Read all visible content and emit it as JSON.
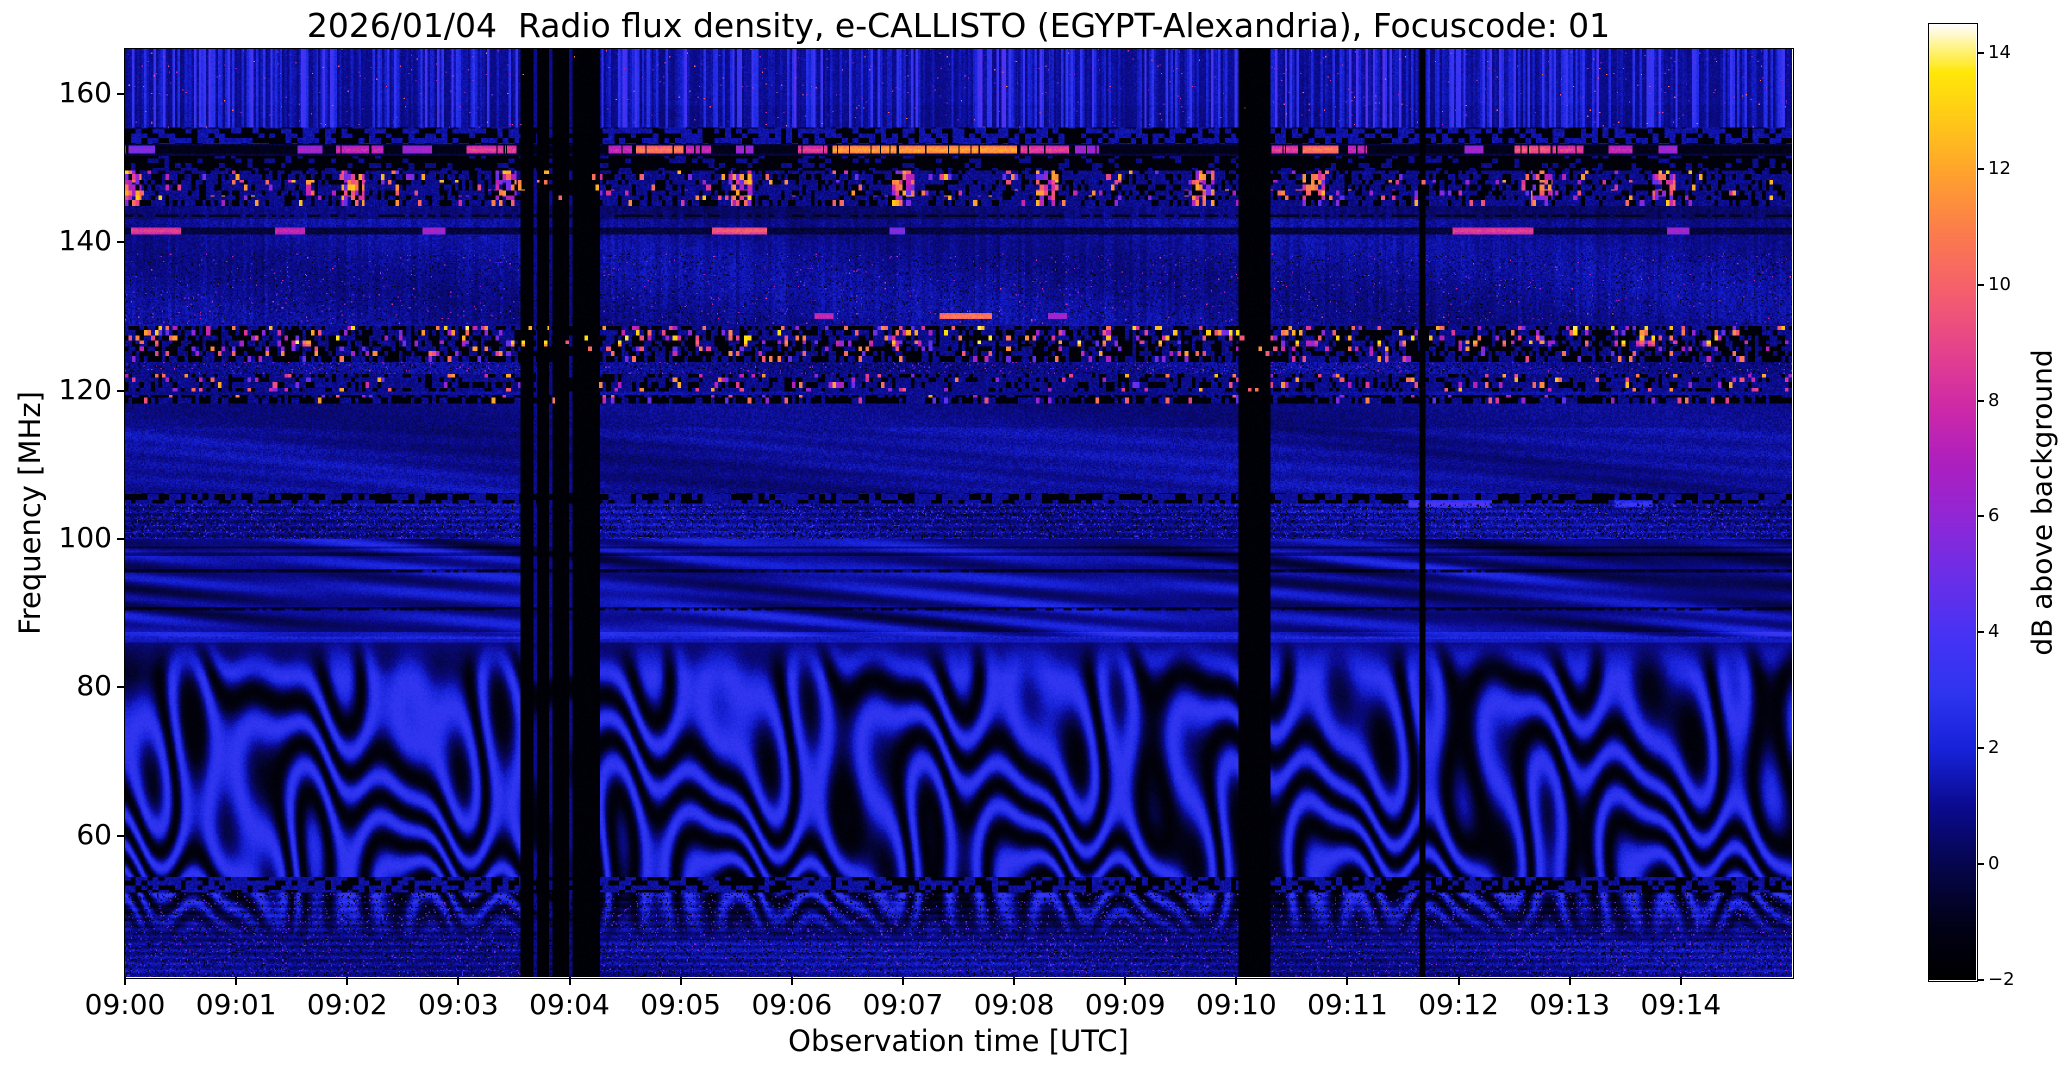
{
  "figure": {
    "title": "2026/01/04  Radio flux density, e-CALLISTO (EGYPT-Alexandria), Focuscode: 01",
    "xlabel": "Observation time [UTC]",
    "ylabel": "Frequency [MHz]",
    "colorbar_label": "dB above background",
    "date": "2026/01/04",
    "instrument": "e-CALLISTO",
    "station": "EGYPT-Alexandria",
    "focuscode": "01"
  },
  "colors": {
    "page_bg": "#ffffff",
    "axis_text": "#000000"
  },
  "chart_data": {
    "type": "heatmap",
    "title": "2026/01/04  Radio flux density, e-CALLISTO (EGYPT-Alexandria), Focuscode: 01",
    "xlabel": "Observation time [UTC]",
    "ylabel": "Frequency [MHz]",
    "x_ticks": [
      "09:00",
      "09:01",
      "09:02",
      "09:03",
      "09:04",
      "09:05",
      "09:06",
      "09:07",
      "09:08",
      "09:09",
      "09:10",
      "09:11",
      "09:12",
      "09:13",
      "09:14"
    ],
    "x_range_minutes": [
      0,
      15
    ],
    "x_start_utc": "09:00",
    "y_ticks": [
      160,
      140,
      120,
      100,
      80,
      60
    ],
    "y_range_mhz": [
      41,
      166
    ],
    "colorbar": {
      "label": "dB above background",
      "ticks": [
        14,
        12,
        10,
        8,
        6,
        4,
        2,
        0,
        -2
      ],
      "tick_labels": [
        "14",
        "12",
        "10",
        "8",
        "6",
        "4",
        "2",
        "0",
        "−2"
      ],
      "range": [
        -2,
        14.5
      ],
      "colormap": "gnuplot2-like (black-blue-violet-magenta-orange-yellow-white)",
      "colormap_stops": [
        [
          0.0,
          "#000000"
        ],
        [
          0.06,
          "#02021a"
        ],
        [
          0.12,
          "#06064e"
        ],
        [
          0.18,
          "#0b0b8f"
        ],
        [
          0.24,
          "#1722d8"
        ],
        [
          0.3,
          "#2f35f0"
        ],
        [
          0.36,
          "#4733f5"
        ],
        [
          0.42,
          "#6a2fe8"
        ],
        [
          0.48,
          "#8f28d8"
        ],
        [
          0.54,
          "#ad1fc0"
        ],
        [
          0.6,
          "#cf2aa8"
        ],
        [
          0.66,
          "#e6438c"
        ],
        [
          0.72,
          "#f55f6e"
        ],
        [
          0.78,
          "#fc7b4e"
        ],
        [
          0.84,
          "#ffa030"
        ],
        [
          0.9,
          "#ffc918"
        ],
        [
          0.95,
          "#ffe80a"
        ],
        [
          1.0,
          "#ffffff"
        ]
      ]
    },
    "features": {
      "noise_floor_db": 0.9,
      "fringes": {
        "f_min": 46.0,
        "f_max": 86.5,
        "amplitude_db": 2.3,
        "stripe_spacing_mhz": [
          1.7,
          3.4
        ],
        "description": "wavy quasi-horizontal interference fringes between ~50 and 86 MHz"
      },
      "vertical_dropouts_min": [
        [
          3.56,
          3.67
        ],
        [
          3.71,
          3.81
        ],
        [
          3.845,
          4.0
        ],
        [
          4.03,
          4.27
        ],
        [
          10.02,
          10.31
        ],
        [
          11.645,
          11.695
        ]
      ],
      "partial_dropouts_min": [
        [
          3.67,
          3.71
        ],
        [
          3.81,
          3.845
        ],
        [
          4.0,
          4.03
        ]
      ],
      "dark_rows_mhz": [
        143.6,
        95.7,
        90.5
      ],
      "bands": [
        {
          "type": "streaks",
          "f0": 158.5,
          "f1": 166.2,
          "base": 0.5
        },
        {
          "type": "streaks",
          "f0": 155.5,
          "f1": 158.5,
          "base": 0.35
        },
        {
          "type": "darkdash",
          "f0": 153.2,
          "f1": 155.5,
          "p_black": 0.5,
          "base": 0.9
        },
        {
          "type": "line152",
          "f0": 151.6,
          "f1": 153.2,
          "center": 152.4,
          "segments": [
            [
              0.0,
              0.27,
              6
            ],
            [
              1.55,
              1.78,
              7
            ],
            [
              1.9,
              2.32,
              8
            ],
            [
              2.5,
              2.76,
              7
            ],
            [
              3.08,
              3.52,
              9
            ],
            [
              4.35,
              4.56,
              8
            ],
            [
              4.6,
              5.02,
              11
            ],
            [
              5.05,
              5.27,
              8
            ],
            [
              5.5,
              5.66,
              7
            ],
            [
              6.05,
              6.32,
              9
            ],
            [
              6.36,
              8.02,
              12
            ],
            [
              8.06,
              8.5,
              9
            ],
            [
              8.55,
              8.76,
              7
            ],
            [
              10.32,
              10.56,
              9
            ],
            [
              10.6,
              10.92,
              11
            ],
            [
              11.0,
              11.17,
              8
            ],
            [
              12.05,
              12.22,
              7
            ],
            [
              12.5,
              12.82,
              10
            ],
            [
              12.85,
              13.12,
              9
            ],
            [
              13.35,
              13.56,
              8
            ],
            [
              13.8,
              13.97,
              7
            ]
          ]
        },
        {
          "type": "darkdash",
          "f0": 149.6,
          "f1": 151.6,
          "p_black": 0.78,
          "base": 0.5
        },
        {
          "type": "rfiband",
          "f0": 144.8,
          "f1": 149.6,
          "p_black": 0.28,
          "p_bright": 0.05,
          "bright_hi": 13,
          "clusters": [
            0.05,
            2.05,
            3.42,
            5.55,
            7.0,
            8.3,
            9.7,
            10.7,
            12.75,
            13.85
          ],
          "rows": [
            146.6,
            148.6
          ]
        },
        {
          "type": "dim",
          "f0": 143.1,
          "f1": 144.8,
          "amount": 0.5
        },
        {
          "type": "segline",
          "f0": 141.0,
          "f1": 142.0,
          "dark_off": true,
          "segments": [
            [
              0.05,
              0.5,
              9
            ],
            [
              1.35,
              1.62,
              8
            ],
            [
              2.68,
              2.88,
              7
            ],
            [
              5.28,
              5.78,
              10
            ],
            [
              6.88,
              7.02,
              6
            ],
            [
              11.95,
              12.68,
              9
            ],
            [
              13.88,
              14.08,
              7
            ]
          ]
        },
        {
          "type": "speckle",
          "f0": 129.0,
          "f1": 138.5,
          "p_bright": 0.012,
          "bright_hi": 9,
          "p_black": 0.04
        },
        {
          "type": "segline",
          "f0": 129.6,
          "f1": 130.4,
          "dark_off": false,
          "segments": [
            [
              6.2,
              6.38,
              8
            ],
            [
              7.33,
              7.8,
              11
            ],
            [
              8.3,
              8.48,
              7
            ]
          ]
        },
        {
          "type": "rfiband",
          "f0": 126.2,
          "f1": 128.6,
          "p_black": 0.42,
          "p_bright": 0.16,
          "bright_hi": 14
        },
        {
          "type": "rfiband",
          "f0": 123.8,
          "f1": 126.2,
          "p_black": 0.5,
          "p_bright": 0.1,
          "bright_hi": 12
        },
        {
          "type": "speckle",
          "f0": 122.3,
          "f1": 123.8,
          "p_bright": 0.03,
          "bright_hi": 8,
          "p_black": 0.1
        },
        {
          "type": "rfiband",
          "f0": 119.8,
          "f1": 122.3,
          "p_black": 0.25,
          "p_bright": 0.09,
          "bright_hi": 13
        },
        {
          "type": "rfiband",
          "f0": 118.2,
          "f1": 119.4,
          "p_black": 0.6,
          "p_bright": 0.06,
          "bright_hi": 12
        },
        {
          "type": "dim",
          "f0": 115.0,
          "f1": 118.2,
          "amount": 0.25
        },
        {
          "type": "smudge2",
          "f0": 106.2,
          "f1": 115.0,
          "amp": 0.4
        },
        {
          "type": "darkdash",
          "f0": 104.8,
          "f1": 106.2,
          "p_black": 0.5,
          "base": 0.7
        },
        {
          "type": "segline",
          "f0": 104.2,
          "f1": 105.2,
          "dark_off": false,
          "segments": [
            [
              11.55,
              12.3,
              4.2
            ],
            [
              13.4,
              13.75,
              3.5
            ]
          ]
        },
        {
          "type": "speckle",
          "f0": 100.0,
          "f1": 104.8,
          "p_bright": 0.05,
          "bright_hi": 4.5,
          "p_black": 0.12,
          "rowmod": true
        },
        {
          "type": "smudge",
          "f0": 86.8,
          "f1": 100.0
        },
        {
          "type": "bright",
          "f0": 86.0,
          "f1": 87.4,
          "amount": 0.9
        },
        {
          "type": "darkdash",
          "f0": 52.4,
          "f1": 54.4,
          "p_black": 0.45,
          "base": 0.8
        },
        {
          "type": "speckle",
          "f0": 41.0,
          "f1": 52.4,
          "p_bright": 0.035,
          "bright_hi": 6,
          "p_black": 0.1,
          "rowmod": true
        }
      ]
    }
  }
}
